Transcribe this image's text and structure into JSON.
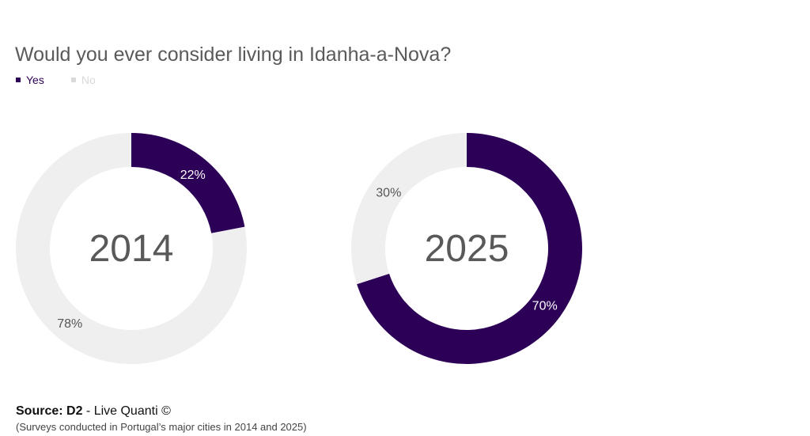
{
  "title": "Would you ever consider living in Idanha-a-Nova?",
  "legend": [
    {
      "label": "Yes",
      "color": "#2d0057"
    },
    {
      "label": "No",
      "color": "#d9d9d9"
    }
  ],
  "colors": {
    "yes": "#2d0057",
    "no": "#efefef",
    "label_on_yes": "#ffffff",
    "label_on_no": "#555555",
    "center_text": "#595959"
  },
  "source": {
    "bold": "Source: D2",
    "rest": " - Live Quanti ©"
  },
  "note": "(Surveys conducted in Portugal’s major cities in 2014 and 2025)",
  "chart_data": [
    {
      "type": "pie",
      "center_label": "2014",
      "series": [
        {
          "name": "Yes",
          "value": 22,
          "label": "22%"
        },
        {
          "name": "No",
          "value": 78,
          "label": "78%"
        }
      ]
    },
    {
      "type": "pie",
      "center_label": "2025",
      "series": [
        {
          "name": "Yes",
          "value": 70,
          "label": "70%"
        },
        {
          "name": "No",
          "value": 30,
          "label": "30%"
        }
      ]
    }
  ]
}
